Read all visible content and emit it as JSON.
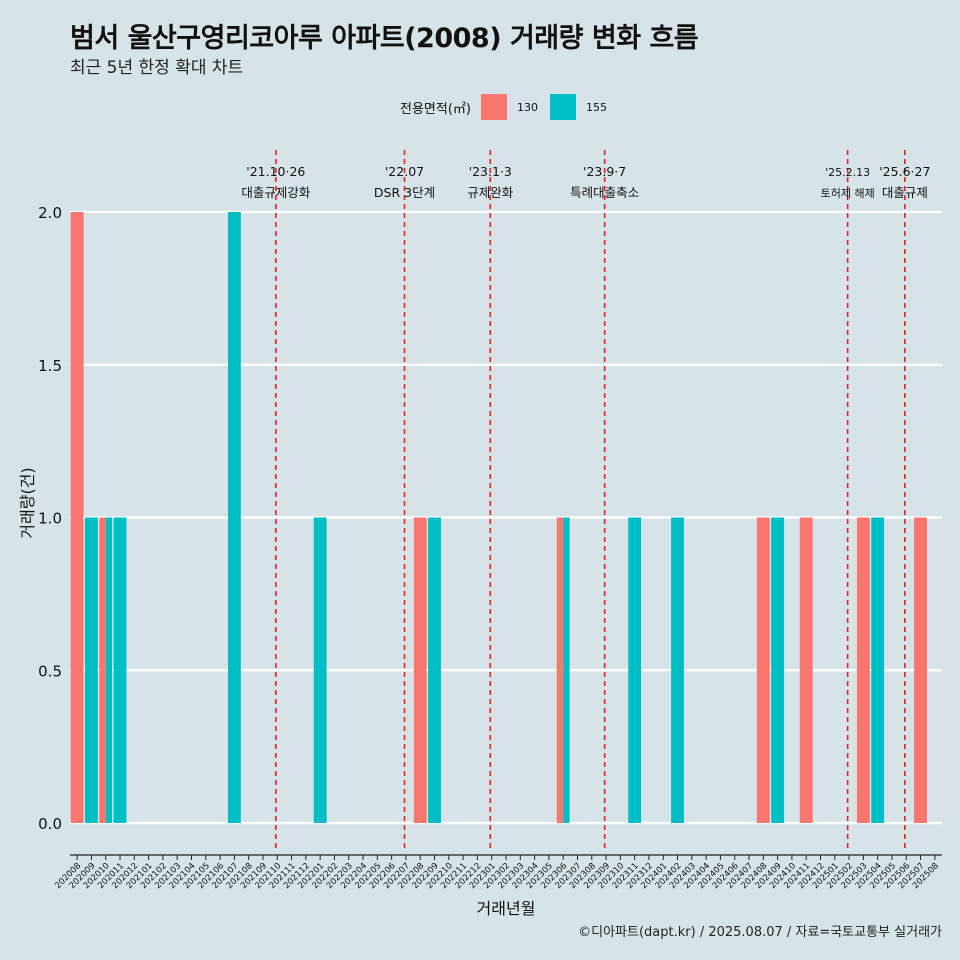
{
  "header": {
    "title": "범서 울산구영리코아루 아파트(2008) 거래량 변화 흐름",
    "subtitle": "최근 5년 한정 확대 차트"
  },
  "legend": {
    "title": "전용면적(㎡)",
    "items": [
      {
        "label": "130",
        "color": "#f8766d"
      },
      {
        "label": "155",
        "color": "#00bfc4"
      }
    ]
  },
  "caption": "©디아파트(dapt.kr) / 2025.08.07 / 자료=국토교통부 실거래가",
  "chart_data": {
    "type": "bar",
    "xlabel": "거래년월",
    "ylabel": "거래량(건)",
    "ylim": [
      0,
      2.0
    ],
    "yticks": [
      "0.0",
      "0.5",
      "1.0",
      "1.5",
      "2.0"
    ],
    "ytick_values": [
      0,
      0.5,
      1.0,
      1.5,
      2.0
    ],
    "grid": true,
    "legend_position": "top",
    "categories": [
      "202008",
      "202009",
      "202010",
      "202011",
      "202012",
      "202101",
      "202102",
      "202103",
      "202104",
      "202105",
      "202106",
      "202107",
      "202108",
      "202109",
      "202110",
      "202111",
      "202112",
      "202201",
      "202202",
      "202203",
      "202204",
      "202205",
      "202206",
      "202207",
      "202208",
      "202209",
      "202210",
      "202211",
      "202212",
      "202301",
      "202302",
      "202303",
      "202304",
      "202305",
      "202306",
      "202307",
      "202308",
      "202309",
      "202310",
      "202311",
      "202312",
      "202401",
      "202402",
      "202403",
      "202404",
      "202405",
      "202406",
      "202407",
      "202408",
      "202409",
      "202410",
      "202411",
      "202412",
      "202501",
      "202502",
      "202503",
      "202504",
      "202505",
      "202506",
      "202507",
      "202508"
    ],
    "series": [
      {
        "name": "130",
        "color": "#f8766d",
        "values": [
          2,
          0,
          1,
          0,
          0,
          0,
          0,
          0,
          0,
          0,
          0,
          0,
          0,
          0,
          0,
          0,
          0,
          0,
          0,
          0,
          0,
          0,
          0,
          0,
          1,
          0,
          0,
          0,
          0,
          0,
          0,
          0,
          0,
          0,
          1,
          0,
          0,
          0,
          0,
          0,
          0,
          0,
          0,
          0,
          0,
          0,
          0,
          0,
          1,
          0,
          0,
          1,
          0,
          0,
          0,
          1,
          0,
          0,
          0,
          1,
          0
        ]
      },
      {
        "name": "155",
        "color": "#00bfc4",
        "values": [
          0,
          1,
          1,
          1,
          0,
          0,
          0,
          0,
          0,
          0,
          0,
          2,
          0,
          0,
          0,
          0,
          0,
          1,
          0,
          0,
          0,
          0,
          0,
          0,
          0,
          1,
          0,
          0,
          0,
          0,
          0,
          0,
          0,
          0,
          1,
          0,
          0,
          0,
          0,
          1,
          0,
          0,
          1,
          0,
          0,
          0,
          0,
          0,
          0,
          1,
          0,
          0,
          0,
          0,
          0,
          0,
          1,
          0,
          0,
          0,
          0
        ]
      }
    ],
    "annotations": [
      {
        "x": 13.9,
        "date": "'21.10·26",
        "label": "대출규제강화"
      },
      {
        "x": 22.9,
        "date": "'22.07",
        "label": "DSR 3단계"
      },
      {
        "x": 28.9,
        "date": "'23.1·3",
        "label": "규제완화"
      },
      {
        "x": 36.9,
        "date": "'23.9·7",
        "label": "특례대출축소"
      },
      {
        "x": 53.9,
        "date": "'25.2.13",
        "label": "토허제 해제"
      },
      {
        "x": 57.9,
        "date": "'25.6·27",
        "label": "대출규제"
      }
    ]
  }
}
